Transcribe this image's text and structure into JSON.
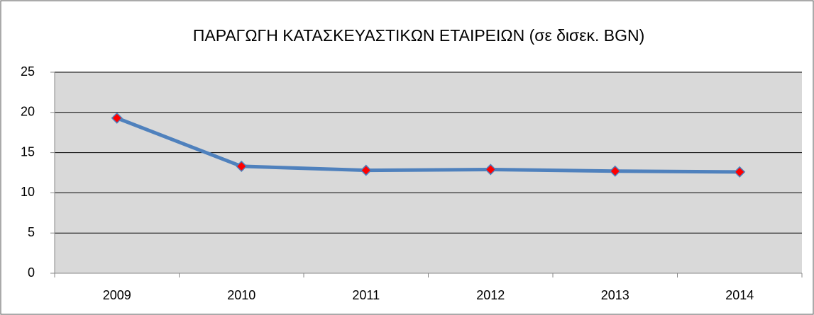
{
  "chart_data": {
    "type": "line",
    "title": "ΠΑΡΑΓΩΓΗ ΚΑΤΑΣΚΕΥΑΣΤΙΚΩΝ ΕΤΑΙΡΕΙΩΝ (σε δισεκ. BGN)",
    "categories": [
      "2009",
      "2010",
      "2011",
      "2012",
      "2013",
      "2014"
    ],
    "series": [
      {
        "color": "#4f81bd",
        "marker_color": "#ff0000",
        "values": [
          19.3,
          13.3,
          12.8,
          12.9,
          12.7,
          12.6
        ]
      }
    ],
    "ylim": [
      0,
      25
    ],
    "yticks": [
      0,
      5,
      10,
      15,
      20,
      25
    ],
    "grid": true
  }
}
